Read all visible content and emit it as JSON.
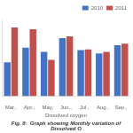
{
  "chart_data": {
    "type": "bar",
    "categories": [
      "Mar.,",
      "Apr.,",
      "May,",
      "Jun.,",
      "Jul.,",
      "Aug.,",
      "Sep.,"
    ],
    "series": [
      {
        "name": "2010",
        "color": "#4472C4",
        "values": [
          4.2,
          6.0,
          5.5,
          7.2,
          5.7,
          5.3,
          6.3
        ]
      },
      {
        "name": "2011",
        "color": "#C0504D",
        "values": [
          8.5,
          8.3,
          4.5,
          7.4,
          5.8,
          5.5,
          6.5
        ]
      }
    ],
    "xlabel": "Dissolved oxygen",
    "subtitle": "Fig. 8:  Graph showing Monthly variation of Dissolved O",
    "ylim": [
      0,
      9.5
    ],
    "grid": false,
    "legend": "upper right",
    "tick_labels": "x"
  }
}
